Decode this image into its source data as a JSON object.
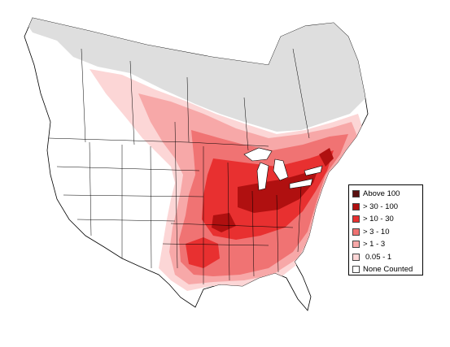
{
  "map": {
    "land_color": "#ffffff",
    "boundary_color": "#000000",
    "no_data_color": "#dedede"
  },
  "legend": {
    "items": [
      {
        "label": "Above 100",
        "color": "#5a0f0f"
      },
      {
        "label": "> 30 - 100",
        "color": "#b01010"
      },
      {
        "label": "> 10 - 30",
        "color": "#e83030"
      },
      {
        "label": "> 3 - 10",
        "color": "#f07373"
      },
      {
        "label": "> 1 - 3",
        "color": "#f7a8a8"
      },
      {
        "label": "0.05 - 1",
        "color": "#fcd6d6"
      },
      {
        "label": "None Counted",
        "color": "#ffffff"
      }
    ]
  }
}
